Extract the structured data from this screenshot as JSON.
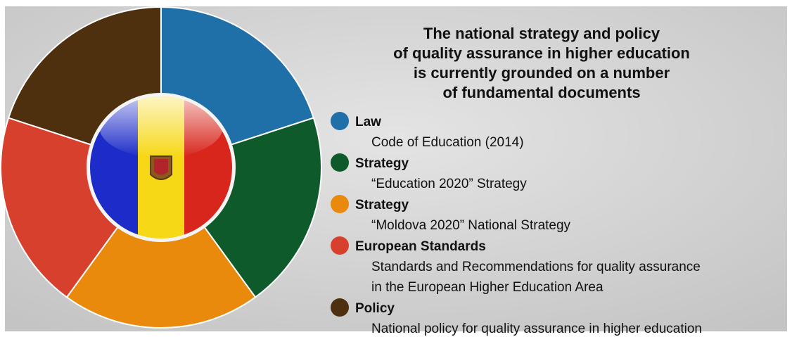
{
  "title_lines": [
    "The national strategy and policy",
    "of quality assurance in higher education",
    "is currently grounded on a number",
    "of fundamental documents"
  ],
  "items": [
    {
      "heading": "Law",
      "lines": [
        "Code of Education (2014)"
      ]
    },
    {
      "heading": "Strategy",
      "lines": [
        "“Education 2020” Strategy"
      ]
    },
    {
      "heading": "Strategy",
      "lines": [
        "“Moldova 2020” National Strategy"
      ]
    },
    {
      "heading": "European Standards",
      "lines": [
        "Standards and Recommendations for quality assurance",
        "in the European Higher Education Area"
      ]
    },
    {
      "heading": "Policy",
      "lines": [
        "National policy for quality assurance in higher education"
      ]
    }
  ]
}
